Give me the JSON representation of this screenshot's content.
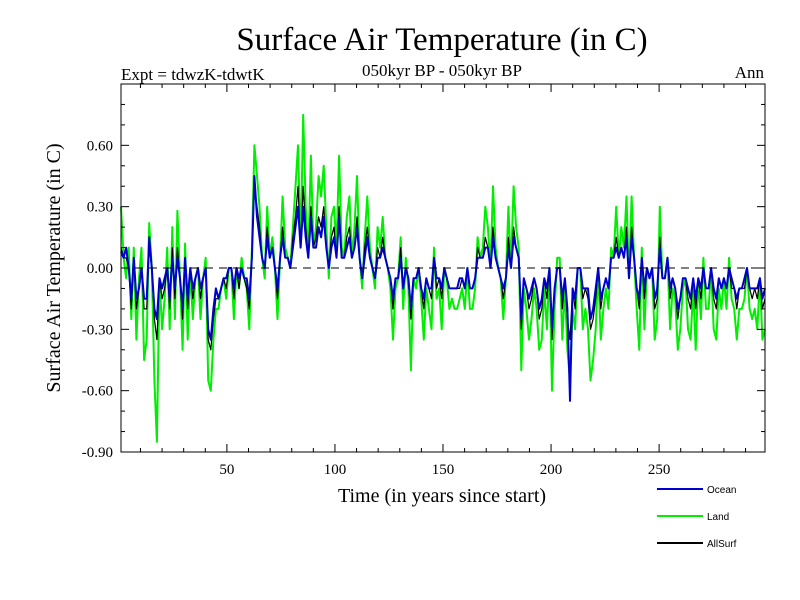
{
  "chart_data": {
    "type": "line",
    "title": "Surface Air Temperature (in C)",
    "subtitle": "050kyr BP - 050kyr BP",
    "experiment": "Expt = tdwzK-tdwtK",
    "season": "Ann",
    "xlabel": "Time (in years since start)",
    "ylabel": "Surface Air Temperature (in C)",
    "xlim": [
      1,
      299
    ],
    "ylim": [
      -0.9,
      0.9
    ],
    "x_ticks": [
      50,
      100,
      150,
      200,
      250
    ],
    "x_tick_labels": [
      "50",
      "100",
      "150",
      "200",
      "250"
    ],
    "y_ticks": [
      -0.9,
      -0.6,
      -0.3,
      0.0,
      0.3,
      0.6
    ],
    "y_tick_labels": [
      "-0.90",
      "-0.60",
      "-0.30",
      "0.00",
      "0.30",
      "0.60"
    ],
    "zero_line": true,
    "legend_position": "bottom-right",
    "series": [
      {
        "name": "Land",
        "color": "#00ee00",
        "values": [
          0.3,
          0.05,
          -0.05,
          0.1,
          -0.25,
          0.1,
          -0.35,
          -0.05,
          0.1,
          -0.45,
          -0.35,
          0.22,
          0.0,
          -0.55,
          -0.85,
          -0.05,
          -0.3,
          -0.15,
          0.1,
          -0.3,
          0.2,
          -0.25,
          0.28,
          -0.05,
          -0.4,
          0.12,
          -0.35,
          0.0,
          -0.25,
          -0.05,
          0.0,
          -0.25,
          -0.05,
          0.05,
          -0.55,
          -0.6,
          -0.35,
          -0.2,
          -0.2,
          -0.1,
          -0.05,
          -0.15,
          0.0,
          0.0,
          -0.25,
          0.0,
          -0.1,
          0.05,
          -0.05,
          -0.1,
          -0.3,
          0.1,
          0.6,
          0.45,
          0.3,
          0.05,
          -0.05,
          0.3,
          0.05,
          0.15,
          0.0,
          -0.25,
          0.05,
          0.35,
          0.1,
          0.05,
          0.0,
          0.2,
          0.4,
          0.6,
          0.1,
          0.75,
          0.3,
          0.05,
          0.55,
          0.1,
          0.2,
          0.45,
          0.35,
          0.5,
          0.2,
          -0.05,
          0.25,
          0.3,
          0.1,
          0.55,
          0.1,
          0.05,
          0.25,
          0.35,
          0.05,
          0.2,
          0.45,
          0.05,
          -0.1,
          0.15,
          0.35,
          0.1,
          0.0,
          -0.1,
          0.2,
          0.1,
          0.25,
          0.05,
          0.0,
          -0.1,
          -0.35,
          -0.1,
          -0.05,
          0.15,
          -0.2,
          0.05,
          -0.1,
          -0.5,
          -0.05,
          -0.1,
          0.0,
          -0.15,
          -0.35,
          -0.1,
          -0.2,
          -0.3,
          0.1,
          -0.15,
          -0.1,
          -0.3,
          0.0,
          -0.05,
          -0.2,
          -0.15,
          -0.2,
          -0.2,
          -0.15,
          -0.1,
          -0.2,
          0.0,
          -0.2,
          -0.2,
          -0.1,
          0.15,
          0.05,
          0.1,
          0.3,
          0.2,
          0.0,
          0.4,
          0.1,
          0.0,
          -0.05,
          -0.25,
          -0.05,
          0.3,
          0.0,
          0.4,
          0.2,
          0.1,
          -0.5,
          -0.1,
          -0.2,
          -0.35,
          -0.25,
          -0.1,
          -0.2,
          -0.4,
          -0.35,
          -0.1,
          -0.3,
          0.0,
          -0.6,
          -0.2,
          0.05,
          0.05,
          -0.35,
          -0.1,
          -0.4,
          -0.55,
          -0.2,
          -0.3,
          0.0,
          0.0,
          -0.3,
          -0.2,
          -0.3,
          -0.55,
          -0.45,
          -0.3,
          0.0,
          -0.35,
          -0.2,
          -0.1,
          -0.2,
          0.1,
          0.05,
          0.3,
          0.05,
          0.2,
          0.1,
          0.35,
          -0.05,
          0.35,
          0.05,
          -0.2,
          -0.4,
          0.1,
          -0.3,
          0.0,
          -0.05,
          0.0,
          -0.35,
          -0.25,
          0.3,
          -0.05,
          -0.05,
          0.05,
          -0.3,
          -0.1,
          -0.15,
          -0.4,
          -0.3,
          -0.1,
          -0.05,
          -0.3,
          -0.35,
          -0.1,
          -0.4,
          -0.05,
          -0.25,
          0.05,
          -0.2,
          -0.2,
          0.0,
          -0.3,
          -0.35,
          -0.1,
          -0.2,
          -0.05,
          -0.2,
          0.05,
          -0.15,
          -0.2,
          -0.35,
          -0.2,
          -0.2,
          -0.15,
          0.0,
          -0.2,
          -0.25,
          -0.2,
          -0.3,
          -0.05,
          -0.35,
          -0.3
        ]
      },
      {
        "name": "AllSurf",
        "color": "#000000",
        "values": [
          0.1,
          0.05,
          0.05,
          0.0,
          -0.2,
          0.05,
          -0.2,
          -0.1,
          0.0,
          -0.2,
          -0.2,
          0.1,
          0.0,
          -0.25,
          -0.35,
          -0.05,
          -0.15,
          -0.1,
          0.0,
          -0.2,
          0.1,
          -0.15,
          0.1,
          -0.05,
          -0.25,
          0.05,
          -0.2,
          0.0,
          -0.15,
          -0.05,
          0.0,
          -0.15,
          -0.05,
          0.0,
          -0.35,
          -0.4,
          -0.25,
          -0.15,
          -0.15,
          -0.1,
          -0.05,
          -0.1,
          0.0,
          0.0,
          -0.15,
          0.0,
          -0.1,
          0.0,
          -0.05,
          -0.1,
          -0.2,
          0.05,
          0.4,
          0.3,
          0.2,
          0.05,
          0.0,
          0.2,
          0.05,
          0.1,
          0.0,
          -0.15,
          0.05,
          0.2,
          0.05,
          0.05,
          0.0,
          0.15,
          0.25,
          0.4,
          0.1,
          0.4,
          0.2,
          0.05,
          0.3,
          0.1,
          0.15,
          0.25,
          0.2,
          0.3,
          0.1,
          0.0,
          0.15,
          0.2,
          0.05,
          0.3,
          0.05,
          0.05,
          0.15,
          0.2,
          0.05,
          0.1,
          0.25,
          0.05,
          -0.05,
          0.1,
          0.2,
          0.05,
          0.0,
          -0.05,
          0.1,
          0.05,
          0.15,
          0.05,
          0.0,
          -0.05,
          -0.2,
          -0.05,
          -0.05,
          0.1,
          -0.1,
          0.0,
          -0.05,
          -0.25,
          -0.05,
          -0.05,
          0.0,
          -0.1,
          -0.2,
          -0.05,
          -0.1,
          -0.15,
          0.05,
          -0.1,
          -0.05,
          -0.15,
          0.0,
          -0.05,
          -0.1,
          -0.1,
          -0.1,
          -0.1,
          -0.1,
          -0.05,
          -0.1,
          0.0,
          -0.1,
          -0.1,
          -0.05,
          0.1,
          0.05,
          0.05,
          0.15,
          0.1,
          0.0,
          0.2,
          0.05,
          0.0,
          -0.05,
          -0.15,
          -0.05,
          0.15,
          0.0,
          0.2,
          0.1,
          0.05,
          -0.3,
          -0.05,
          -0.1,
          -0.2,
          -0.15,
          -0.05,
          -0.1,
          -0.25,
          -0.2,
          -0.05,
          -0.15,
          0.0,
          -0.35,
          -0.1,
          0.0,
          0.0,
          -0.2,
          -0.05,
          -0.25,
          -0.35,
          -0.1,
          -0.2,
          0.0,
          0.0,
          -0.15,
          -0.1,
          -0.15,
          -0.3,
          -0.25,
          -0.15,
          0.0,
          -0.2,
          -0.1,
          -0.05,
          -0.1,
          0.05,
          0.05,
          0.15,
          0.05,
          0.1,
          0.05,
          0.2,
          -0.05,
          0.2,
          0.05,
          -0.1,
          -0.2,
          0.05,
          -0.15,
          0.0,
          -0.05,
          0.0,
          -0.2,
          -0.15,
          0.15,
          -0.05,
          -0.05,
          0.05,
          -0.15,
          -0.05,
          -0.1,
          -0.25,
          -0.15,
          -0.05,
          -0.05,
          -0.15,
          -0.2,
          -0.05,
          -0.2,
          -0.05,
          -0.15,
          0.0,
          -0.1,
          -0.1,
          0.0,
          -0.15,
          -0.2,
          -0.05,
          -0.1,
          -0.05,
          -0.1,
          0.0,
          -0.1,
          -0.1,
          -0.2,
          -0.1,
          -0.1,
          -0.1,
          0.0,
          -0.1,
          -0.15,
          -0.1,
          -0.15,
          -0.05,
          -0.2,
          -0.15
        ]
      },
      {
        "name": "Ocean",
        "color": "#0000cc",
        "values": [
          0.08,
          0.05,
          0.1,
          0.0,
          -0.15,
          0.05,
          -0.15,
          -0.1,
          0.0,
          -0.15,
          -0.15,
          0.15,
          0.0,
          -0.2,
          -0.25,
          -0.05,
          -0.1,
          -0.05,
          0.0,
          -0.15,
          0.05,
          -0.1,
          0.05,
          -0.05,
          -0.2,
          0.05,
          -0.15,
          0.0,
          -0.1,
          -0.05,
          0.0,
          -0.1,
          -0.05,
          0.0,
          -0.3,
          -0.35,
          -0.2,
          -0.1,
          -0.15,
          -0.1,
          -0.05,
          -0.05,
          0.0,
          0.0,
          -0.1,
          0.0,
          -0.05,
          0.0,
          -0.05,
          -0.05,
          -0.15,
          0.05,
          0.45,
          0.25,
          0.15,
          0.05,
          0.0,
          0.15,
          0.05,
          0.1,
          0.0,
          -0.1,
          0.05,
          0.15,
          0.05,
          0.05,
          0.0,
          0.1,
          0.2,
          0.3,
          0.1,
          0.3,
          0.15,
          0.05,
          0.25,
          0.1,
          0.1,
          0.2,
          0.15,
          0.25,
          0.1,
          0.0,
          0.1,
          0.15,
          0.05,
          0.25,
          0.05,
          0.05,
          0.1,
          0.15,
          0.05,
          0.1,
          0.2,
          0.05,
          -0.05,
          0.05,
          0.15,
          0.05,
          0.0,
          -0.05,
          0.05,
          0.05,
          0.1,
          0.05,
          0.0,
          -0.05,
          -0.15,
          -0.05,
          -0.05,
          0.05,
          -0.1,
          0.0,
          -0.05,
          -0.2,
          -0.05,
          -0.05,
          0.0,
          -0.1,
          -0.15,
          -0.05,
          -0.1,
          -0.1,
          0.05,
          -0.05,
          -0.05,
          -0.1,
          0.0,
          -0.05,
          -0.1,
          -0.1,
          -0.1,
          -0.1,
          -0.05,
          -0.05,
          -0.1,
          0.0,
          -0.1,
          -0.1,
          -0.05,
          0.05,
          0.05,
          0.05,
          0.1,
          0.1,
          0.0,
          0.15,
          0.05,
          0.0,
          -0.05,
          -0.1,
          -0.05,
          0.1,
          0.0,
          0.15,
          0.1,
          0.05,
          -0.25,
          -0.05,
          -0.1,
          -0.15,
          -0.1,
          -0.05,
          -0.1,
          -0.2,
          -0.15,
          -0.05,
          -0.1,
          0.0,
          -0.3,
          -0.1,
          0.0,
          0.0,
          -0.15,
          -0.05,
          -0.2,
          -0.65,
          -0.1,
          -0.15,
          0.0,
          0.0,
          -0.1,
          -0.1,
          -0.1,
          -0.25,
          -0.2,
          -0.1,
          0.0,
          -0.15,
          -0.1,
          -0.05,
          -0.1,
          0.05,
          0.05,
          0.1,
          0.05,
          0.1,
          0.05,
          0.15,
          -0.05,
          0.15,
          0.05,
          -0.1,
          -0.15,
          0.05,
          -0.1,
          0.0,
          -0.05,
          0.0,
          -0.15,
          -0.1,
          0.1,
          -0.05,
          -0.05,
          0.05,
          -0.1,
          -0.05,
          -0.1,
          -0.2,
          -0.15,
          -0.05,
          -0.05,
          -0.1,
          -0.15,
          -0.05,
          -0.15,
          -0.05,
          -0.1,
          0.0,
          -0.1,
          -0.1,
          0.0,
          -0.1,
          -0.15,
          -0.05,
          -0.1,
          -0.05,
          -0.1,
          0.0,
          -0.05,
          -0.1,
          -0.15,
          -0.1,
          -0.1,
          -0.05,
          0.0,
          -0.1,
          -0.1,
          -0.1,
          -0.1,
          -0.05,
          -0.15,
          -0.1
        ]
      }
    ],
    "legend_order": [
      "Ocean",
      "Land",
      "AllSurf"
    ]
  }
}
